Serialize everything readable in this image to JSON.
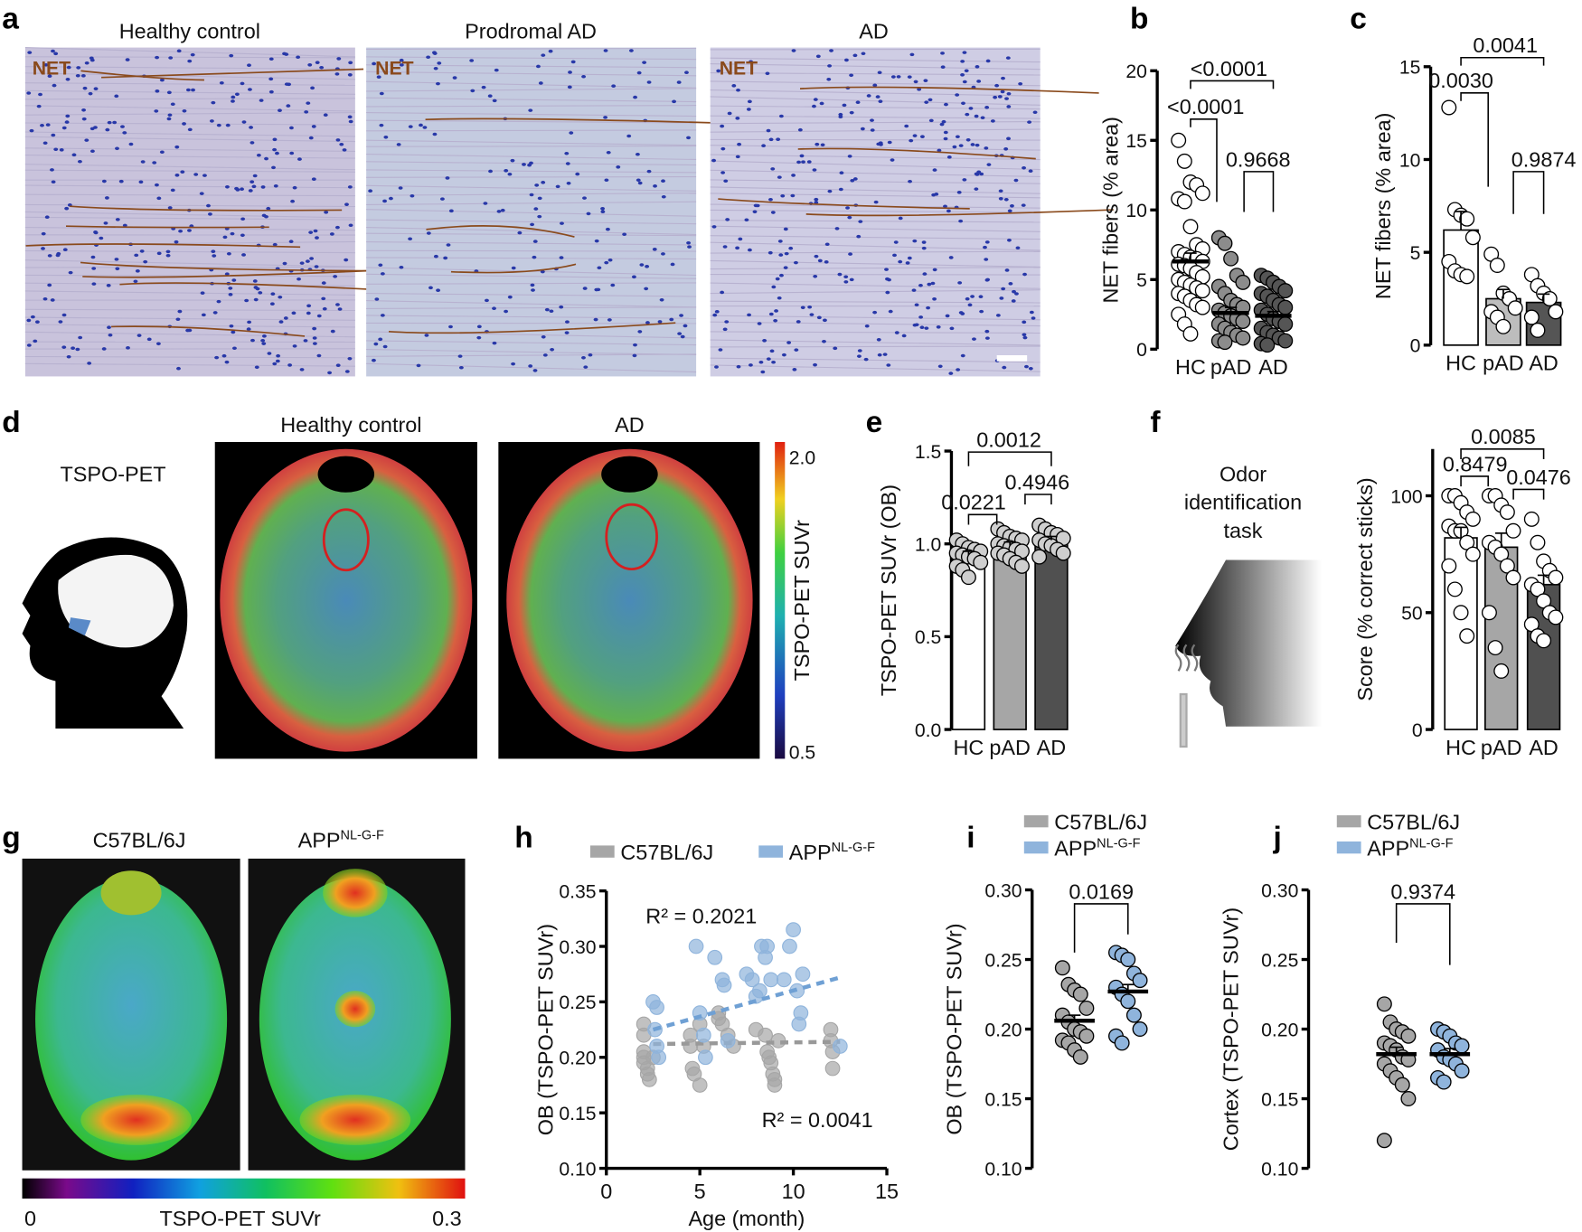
{
  "panel_labels": {
    "a": "a",
    "b": "b",
    "c": "c",
    "d": "d",
    "e": "e",
    "f": "f",
    "g": "g",
    "h": "h",
    "i": "i",
    "j": "j"
  },
  "panel_a": {
    "titles": [
      "Healthy control",
      "Prodromal AD",
      "AD"
    ],
    "stain_label": "NET"
  },
  "panel_d": {
    "method_label": "TSPO-PET",
    "titles": [
      "Healthy control",
      "AD"
    ],
    "colorbar": {
      "max_label": "2.0",
      "min_label": "0.5",
      "label": "TSPO-PET SUVr"
    }
  },
  "panel_f": {
    "task_lines": [
      "Odor",
      "identification",
      "task"
    ]
  },
  "panel_g": {
    "titles": [
      "C57BL/6J",
      "APP",
      "NL-G-F"
    ],
    "colorbar": {
      "min_label": "0",
      "label": "TSPO-PET SUVr",
      "max_label": "0.3"
    }
  },
  "colors": {
    "wt": "#a6a6a6",
    "app": "#8fb4dc",
    "pet_ring": "#d42020",
    "net_fibers": "#8a4a1c"
  },
  "chart_data": [
    {
      "id": "b",
      "type": "scatter-dot-plot",
      "ylabel": "NET fibers (% area)",
      "ylim": [
        0,
        20
      ],
      "yticks": [
        0,
        5,
        10,
        15,
        20
      ],
      "categories": [
        "HC",
        "pAD",
        "AD"
      ],
      "groups": [
        {
          "name": "HC",
          "mean": 6.3,
          "sem": 0.6,
          "point_color": "#ffffff",
          "values": [
            15,
            13.5,
            12,
            11.8,
            11.2,
            10.8,
            10.6,
            8.8,
            7.5,
            7.2,
            7,
            6.8,
            6.6,
            6.5,
            6.3,
            6.1,
            6,
            5.8,
            5.5,
            5.2,
            5,
            4.8,
            4.6,
            4.4,
            4.2,
            4,
            3.8,
            3.5,
            3.2,
            3,
            2.5,
            1.8,
            1.1
          ]
        },
        {
          "name": "pAD",
          "mean": 2.6,
          "sem": 0.4,
          "point_color": "#8c8c8c",
          "values": [
            8,
            7.6,
            6.5,
            5.3,
            4.8,
            4.5,
            4,
            3.5,
            3.2,
            3,
            2.8,
            2.6,
            2.4,
            2.2,
            2,
            1.8,
            1.5,
            1.2,
            1,
            0.8,
            0.6,
            0.5
          ]
        },
        {
          "name": "AD",
          "mean": 2.4,
          "sem": 0.3,
          "point_color": "#555555",
          "values": [
            5.3,
            5.1,
            4.8,
            4.5,
            4.2,
            4,
            3.8,
            3.5,
            3.2,
            3,
            2.8,
            2.5,
            2.2,
            2,
            1.8,
            1.5,
            1.2,
            1,
            0.8,
            0.6,
            0.4,
            0.3
          ]
        }
      ],
      "comparisons": [
        {
          "groups": [
            "HC",
            "AD"
          ],
          "p": "<0.0001"
        },
        {
          "groups": [
            "HC",
            "pAD"
          ],
          "p": "<0.0001"
        },
        {
          "groups": [
            "pAD",
            "AD"
          ],
          "p": "0.9668"
        }
      ]
    },
    {
      "id": "c",
      "type": "bar",
      "ylabel": "NET fibers (% area)",
      "ylim": [
        0,
        15
      ],
      "yticks": [
        0,
        5,
        10,
        15
      ],
      "categories": [
        "HC",
        "pAD",
        "AD"
      ],
      "groups": [
        {
          "name": "HC",
          "mean": 6.2,
          "sem": 1.0,
          "bar_color": "#ffffff",
          "point_color": "#ffffff",
          "values": [
            12.8,
            7.3,
            7,
            6.8,
            5.8,
            4.5,
            4,
            3.8,
            3.7
          ]
        },
        {
          "name": "pAD",
          "mean": 2.5,
          "sem": 0.5,
          "bar_color": "#bdbdbd",
          "point_color": "#ffffff",
          "values": [
            4.9,
            4.3,
            2.8,
            2.5,
            2,
            1.8,
            1.5,
            1
          ]
        },
        {
          "name": "AD",
          "mean": 2.3,
          "sem": 0.45,
          "bar_color": "#555555",
          "point_color": "#ffffff",
          "values": [
            3.8,
            3.2,
            2.8,
            2.5,
            1.8,
            1.5,
            0.8
          ]
        }
      ],
      "comparisons": [
        {
          "groups": [
            "HC",
            "AD"
          ],
          "p": "0.0041"
        },
        {
          "groups": [
            "HC",
            "pAD"
          ],
          "p": "0.0030"
        },
        {
          "groups": [
            "pAD",
            "AD"
          ],
          "p": "0.9874"
        }
      ]
    },
    {
      "id": "e",
      "type": "bar",
      "ylabel": "TSPO-PET SUVr (OB)",
      "ylim": [
        0,
        1.5
      ],
      "yticks": [
        0.0,
        0.5,
        1.0,
        1.5
      ],
      "ytick_labels": [
        "0.0",
        "0.5",
        "1.0",
        "1.5"
      ],
      "categories": [
        "HC",
        "pAD",
        "AD"
      ],
      "groups": [
        {
          "name": "HC",
          "mean": 0.94,
          "sem": 0.02,
          "bar_color": "#ffffff",
          "point_color": "#cfcfcf",
          "values": [
            1.02,
            1.0,
            0.98,
            0.97,
            0.96,
            0.95,
            0.94,
            0.93,
            0.92,
            0.9,
            0.88,
            0.86,
            0.82
          ]
        },
        {
          "name": "pAD",
          "mean": 0.99,
          "sem": 0.02,
          "bar_color": "#a6a6a6",
          "point_color": "#cfcfcf",
          "values": [
            1.08,
            1.06,
            1.04,
            1.03,
            1.02,
            1.0,
            0.99,
            0.98,
            0.97,
            0.96,
            0.95,
            0.94,
            0.92,
            0.9,
            0.88
          ]
        },
        {
          "name": "AD",
          "mean": 1.02,
          "sem": 0.02,
          "bar_color": "#505050",
          "point_color": "#cfcfcf",
          "values": [
            1.1,
            1.08,
            1.06,
            1.05,
            1.03,
            1.02,
            1.0,
            0.99,
            0.97,
            0.95,
            0.93
          ]
        }
      ],
      "comparisons": [
        {
          "groups": [
            "HC",
            "AD"
          ],
          "p": "0.0012"
        },
        {
          "groups": [
            "HC",
            "pAD"
          ],
          "p": "0.0221"
        },
        {
          "groups": [
            "pAD",
            "AD"
          ],
          "p": "0.4946"
        }
      ]
    },
    {
      "id": "f",
      "type": "bar",
      "ylabel": "Score (% correct sticks)",
      "ylim": [
        0,
        120
      ],
      "yticks": [
        0,
        50,
        100
      ],
      "categories": [
        "HC",
        "pAD",
        "AD"
      ],
      "groups": [
        {
          "name": "HC",
          "mean": 82,
          "sem": 4.5,
          "bar_color": "#ffffff",
          "point_color": "#ffffff",
          "values": [
            100,
            100,
            97,
            93,
            90,
            87,
            85,
            85,
            80,
            75,
            70,
            60,
            50,
            40
          ]
        },
        {
          "name": "pAD",
          "mean": 78,
          "sem": 6,
          "bar_color": "#a6a6a6",
          "point_color": "#ffffff",
          "values": [
            100,
            100,
            96,
            93,
            85,
            80,
            78,
            75,
            70,
            65,
            50,
            35,
            25
          ]
        },
        {
          "name": "AD",
          "mean": 62,
          "sem": 4,
          "bar_color": "#505050",
          "point_color": "#ffffff",
          "values": [
            90,
            80,
            72,
            68,
            65,
            62,
            60,
            55,
            50,
            48,
            45,
            40,
            38
          ]
        }
      ],
      "comparisons": [
        {
          "groups": [
            "HC",
            "AD"
          ],
          "p": "0.0085"
        },
        {
          "groups": [
            "HC",
            "pAD"
          ],
          "p": "0.8479"
        },
        {
          "groups": [
            "pAD",
            "AD"
          ],
          "p": "0.0476"
        }
      ]
    },
    {
      "id": "h",
      "type": "scatter",
      "xlabel": "Age (month)",
      "ylabel": "OB (TSPO-PET SUVr)",
      "xlim": [
        0,
        15
      ],
      "xticks": [
        0,
        5,
        10,
        15
      ],
      "ylim": [
        0.1,
        0.35
      ],
      "yticks": [
        0.1,
        0.15,
        0.2,
        0.25,
        0.3,
        0.35
      ],
      "ytick_labels": [
        "0.10",
        "0.15",
        "0.20",
        "0.25",
        "0.30",
        "0.35"
      ],
      "legend": "top",
      "series": [
        {
          "name": "C57BL/6J",
          "name_sup": "",
          "color": "#a6a6a6",
          "r2": "R² = 0.0041",
          "trend": [
            [
              2.5,
              0.212
            ],
            [
              12.5,
              0.214
            ]
          ],
          "points": [
            [
              2,
              0.23
            ],
            [
              2,
              0.22
            ],
            [
              2,
              0.205
            ],
            [
              2,
              0.2
            ],
            [
              2,
              0.195
            ],
            [
              2.2,
              0.19
            ],
            [
              2.2,
              0.185
            ],
            [
              2.3,
              0.18
            ],
            [
              2.5,
              0.2
            ],
            [
              4.5,
              0.22
            ],
            [
              4.5,
              0.21
            ],
            [
              4.6,
              0.19
            ],
            [
              4.7,
              0.185
            ],
            [
              5,
              0.175
            ],
            [
              5,
              0.23
            ],
            [
              5.2,
              0.21
            ],
            [
              6,
              0.24
            ],
            [
              6,
              0.235
            ],
            [
              6.2,
              0.23
            ],
            [
              6.5,
              0.22
            ],
            [
              6.8,
              0.21
            ],
            [
              8,
              0.225
            ],
            [
              8.5,
              0.22
            ],
            [
              8.6,
              0.205
            ],
            [
              8.7,
              0.2
            ],
            [
              8.8,
              0.195
            ],
            [
              8.9,
              0.185
            ],
            [
              9,
              0.18
            ],
            [
              9,
              0.175
            ],
            [
              9.2,
              0.215
            ],
            [
              12,
              0.225
            ],
            [
              12,
              0.215
            ],
            [
              12.1,
              0.205
            ],
            [
              12.1,
              0.19
            ]
          ]
        },
        {
          "name": "APP",
          "name_sup": "NL-G-F",
          "color": "#8fb4dc",
          "r2": "R² = 0.2021",
          "trend": [
            [
              2.5,
              0.225
            ],
            [
              12.5,
              0.272
            ]
          ],
          "points": [
            [
              2.5,
              0.25
            ],
            [
              2.7,
              0.245
            ],
            [
              2.6,
              0.225
            ],
            [
              2.7,
              0.21
            ],
            [
              2.8,
              0.2
            ],
            [
              4.8,
              0.3
            ],
            [
              5,
              0.24
            ],
            [
              5.2,
              0.22
            ],
            [
              5.3,
              0.2
            ],
            [
              5.8,
              0.29
            ],
            [
              6.3,
              0.265
            ],
            [
              6.2,
              0.27
            ],
            [
              6.5,
              0.215
            ],
            [
              7.5,
              0.275
            ],
            [
              7.8,
              0.27
            ],
            [
              8,
              0.255
            ],
            [
              8.2,
              0.26
            ],
            [
              8.3,
              0.3
            ],
            [
              8.5,
              0.29
            ],
            [
              8.6,
              0.3
            ],
            [
              8.8,
              0.27
            ],
            [
              9.5,
              0.27
            ],
            [
              9.8,
              0.3
            ],
            [
              10,
              0.315
            ],
            [
              10.2,
              0.26
            ],
            [
              10.5,
              0.275
            ],
            [
              10.4,
              0.24
            ],
            [
              10.3,
              0.23
            ],
            [
              12.5,
              0.21
            ]
          ]
        }
      ]
    },
    {
      "id": "i",
      "type": "scatter-dot-plot",
      "ylabel": "OB (TSPO-PET SUVr)",
      "ylim": [
        0.1,
        0.3
      ],
      "yticks": [
        0.1,
        0.15,
        0.2,
        0.25,
        0.3
      ],
      "ytick_labels": [
        "0.10",
        "0.15",
        "0.20",
        "0.25",
        "0.30"
      ],
      "categories": [
        "C57BL/6J",
        "APP NL-G-F"
      ],
      "legend": "top",
      "groups": [
        {
          "name": "C57BL/6J",
          "mean": 0.206,
          "sem": 0.004,
          "point_color": "#a6a6a6",
          "values": [
            0.244,
            0.232,
            0.228,
            0.225,
            0.215,
            0.21,
            0.205,
            0.2,
            0.198,
            0.195,
            0.192,
            0.19,
            0.185,
            0.18
          ]
        },
        {
          "name": "APP NL-G-F",
          "mean": 0.227,
          "sem": 0.005,
          "point_color": "#8fb4dc",
          "values": [
            0.255,
            0.253,
            0.25,
            0.24,
            0.235,
            0.23,
            0.225,
            0.22,
            0.21,
            0.2,
            0.195,
            0.19
          ]
        }
      ],
      "comparisons": [
        {
          "groups": [
            "C57BL/6J",
            "APP NL-G-F"
          ],
          "p": "0.0169"
        }
      ]
    },
    {
      "id": "j",
      "type": "scatter-dot-plot",
      "ylabel": "Cortex (TSPO-PET SUVr)",
      "ylim": [
        0.1,
        0.3
      ],
      "yticks": [
        0.1,
        0.15,
        0.2,
        0.25,
        0.3
      ],
      "ytick_labels": [
        "0.10",
        "0.15",
        "0.20",
        "0.25",
        "0.30"
      ],
      "categories": [
        "C57BL/6J",
        "APP NL-G-F"
      ],
      "legend": "top",
      "groups": [
        {
          "name": "C57BL/6J",
          "mean": 0.182,
          "sem": 0.005,
          "point_color": "#a6a6a6",
          "values": [
            0.218,
            0.205,
            0.2,
            0.198,
            0.195,
            0.19,
            0.188,
            0.185,
            0.18,
            0.178,
            0.175,
            0.17,
            0.165,
            0.16,
            0.15,
            0.12
          ]
        },
        {
          "name": "APP NL-G-F",
          "mean": 0.182,
          "sem": 0.004,
          "point_color": "#8fb4dc",
          "values": [
            0.2,
            0.198,
            0.195,
            0.19,
            0.188,
            0.185,
            0.18,
            0.178,
            0.175,
            0.17,
            0.165,
            0.162
          ]
        }
      ],
      "comparisons": [
        {
          "groups": [
            "C57BL/6J",
            "APP NL-G-F"
          ],
          "p": "0.9374"
        }
      ]
    }
  ]
}
